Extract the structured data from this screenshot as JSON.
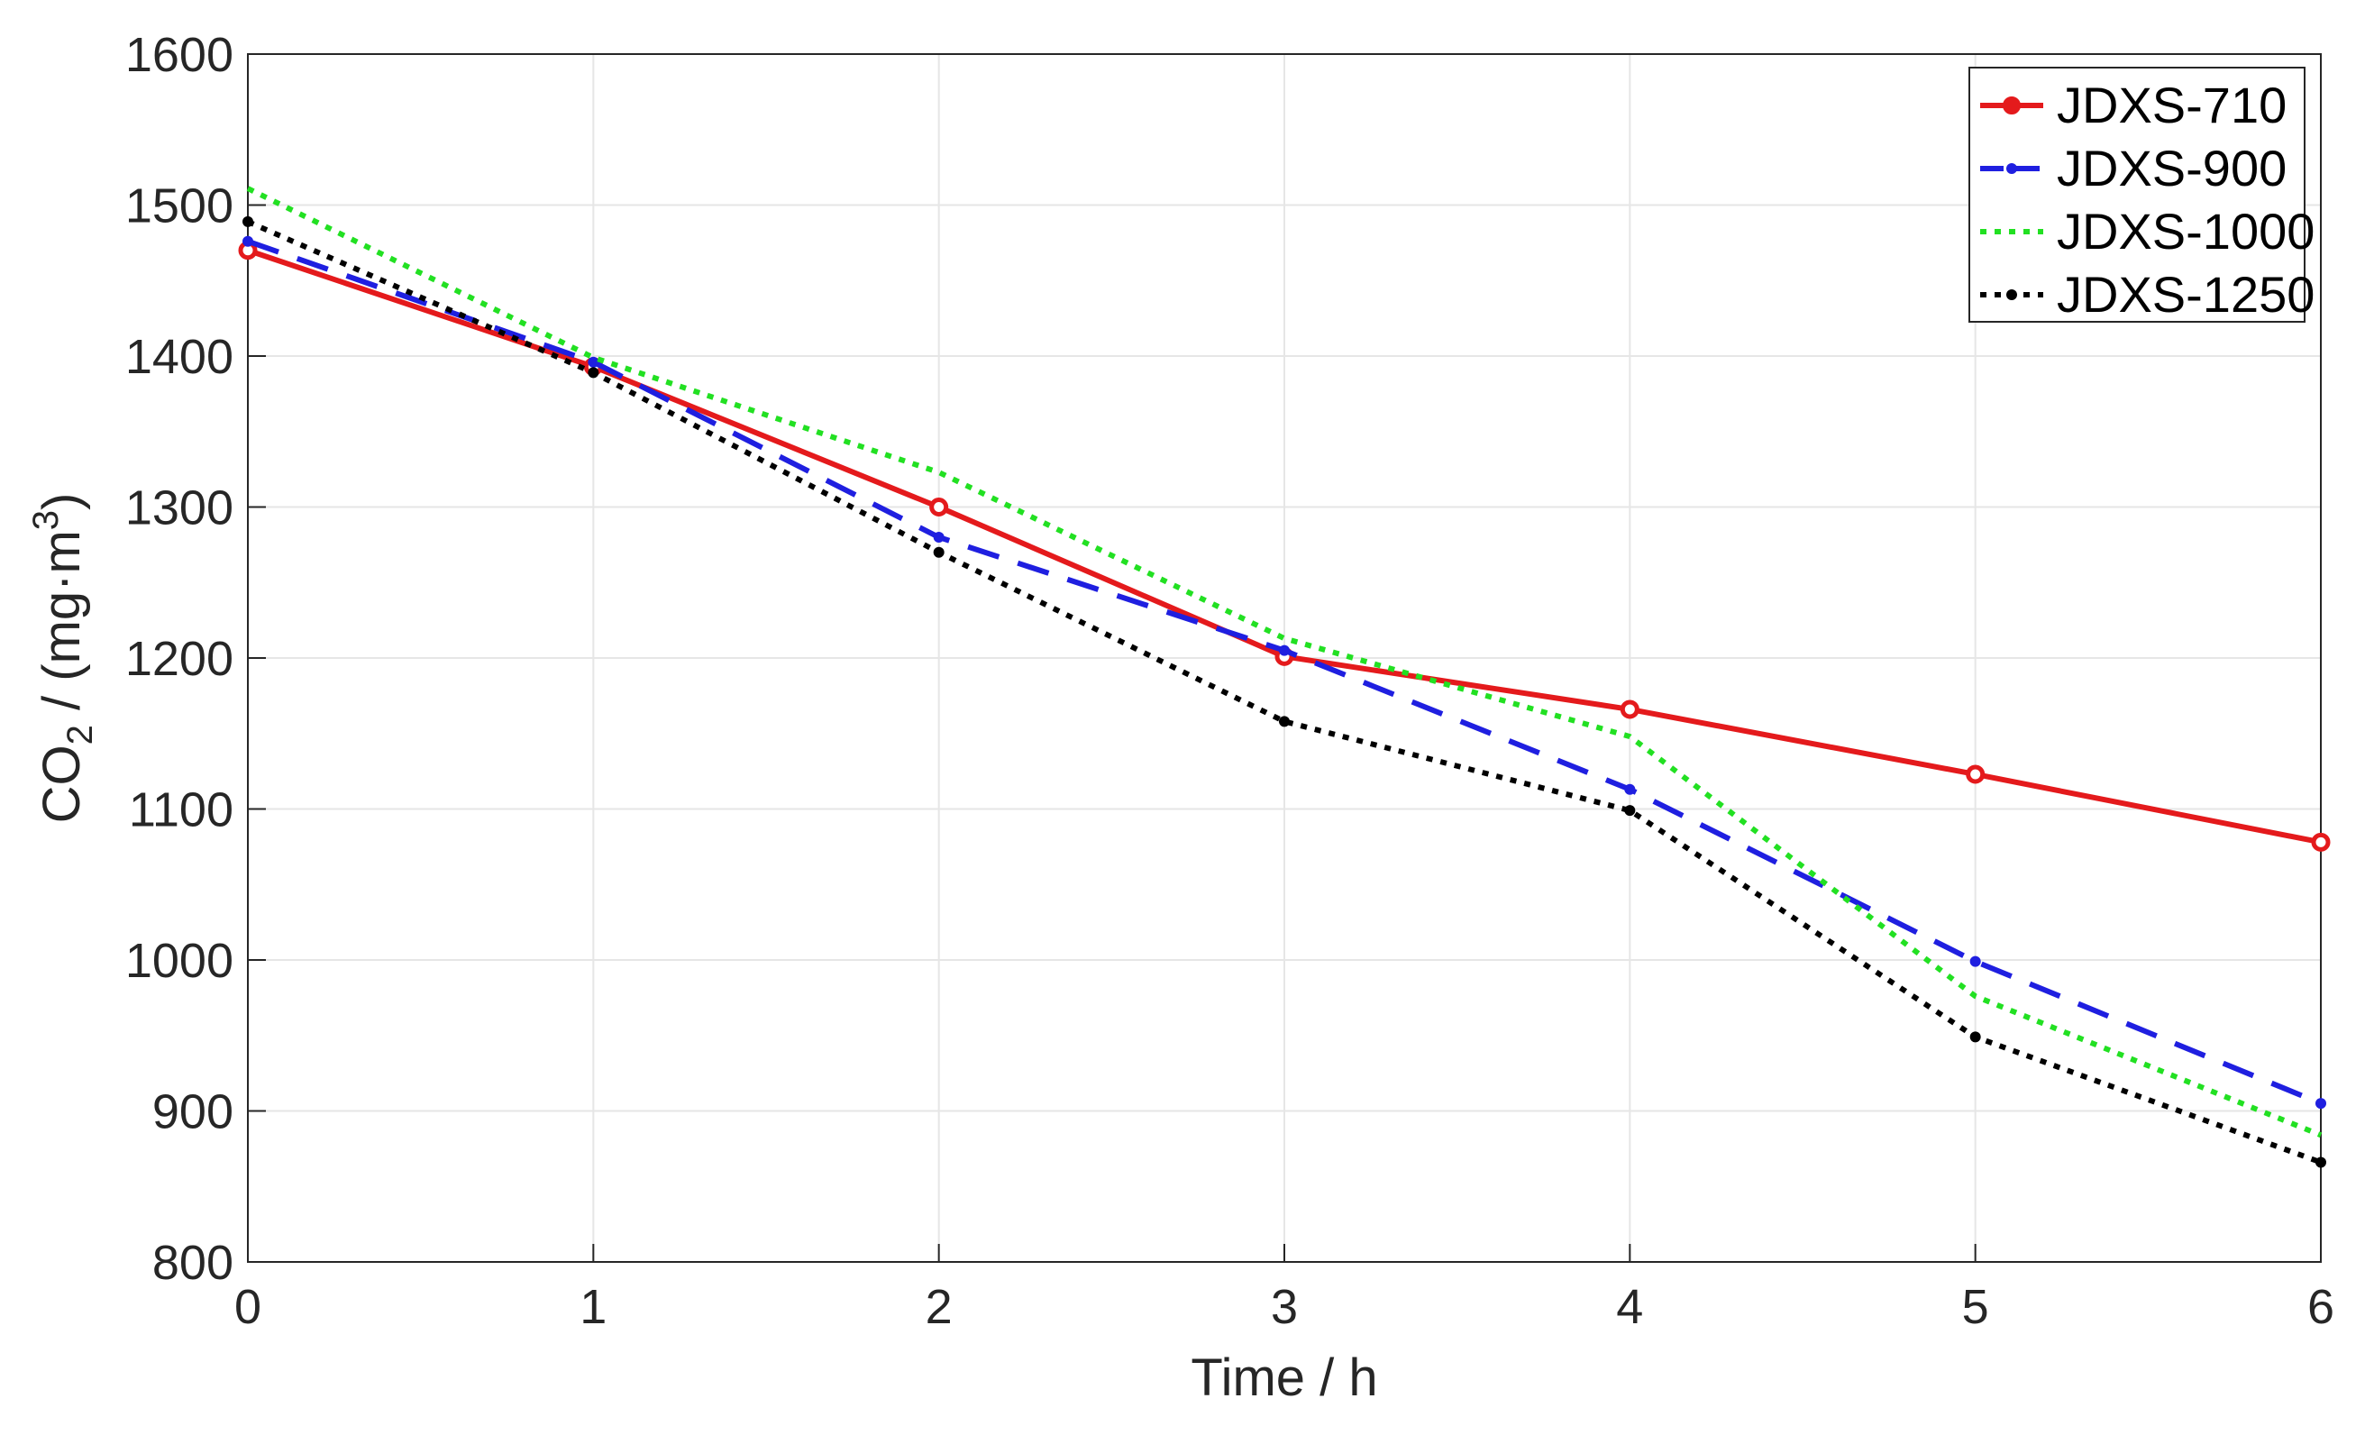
{
  "chart_data": {
    "type": "line",
    "title": "",
    "xlabel": "Time / h",
    "ylabel": {
      "base": "CO",
      "sub": "2",
      "unit_open": " / (mg·m",
      "sup": "3",
      "unit_close": ")"
    },
    "xlim": [
      0,
      6
    ],
    "ylim": [
      800,
      1600
    ],
    "xticks": [
      "0",
      "1",
      "2",
      "3",
      "4",
      "5",
      "6"
    ],
    "yticks": [
      "800",
      "900",
      "1000",
      "1100",
      "1200",
      "1300",
      "1400",
      "1500",
      "1600"
    ],
    "grid": true,
    "legend_position": "top-right",
    "x": [
      0,
      1,
      2,
      3,
      4,
      5,
      6
    ],
    "series": [
      {
        "name": "JDXS-710",
        "values": [
          1470,
          1393,
          1300,
          1201,
          1166,
          1123,
          1078
        ],
        "color": "#e41a1c",
        "style": "solid",
        "marker": "circle"
      },
      {
        "name": "JDXS-900",
        "values": [
          1476,
          1396,
          1280,
          1205,
          1113,
          999,
          905
        ],
        "color": "#1f1fe0",
        "style": "dashed",
        "marker": "dot"
      },
      {
        "name": "JDXS-1000",
        "values": [
          1511,
          1399,
          1323,
          1213,
          1148,
          976,
          884
        ],
        "color": "#22e022",
        "style": "dotted",
        "marker": "none"
      },
      {
        "name": "JDXS-1250",
        "values": [
          1489,
          1389,
          1270,
          1158,
          1099,
          949,
          866
        ],
        "color": "#000000",
        "style": "dotted",
        "marker": "dot"
      }
    ]
  }
}
